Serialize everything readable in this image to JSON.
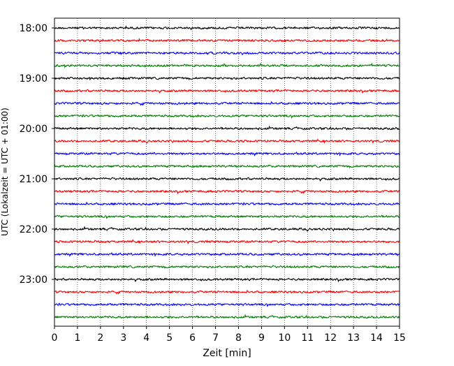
{
  "chart_data": {
    "type": "line",
    "title": "",
    "xlabel": "Zeit  [min]",
    "ylabel": "UTC (Lokalzeit = UTC + 01:00)",
    "xlim": [
      0,
      15
    ],
    "x_ticks": [
      "0",
      "1",
      "2",
      "3",
      "4",
      "5",
      "6",
      "7",
      "8",
      "9",
      "10",
      "11",
      "12",
      "13",
      "14",
      "15"
    ],
    "y_ticks": [
      "18:00",
      "19:00",
      "20:00",
      "21:00",
      "22:00",
      "23:00"
    ],
    "grid": "vertical dotted lines at each minute",
    "trace_colors": [
      "#000000",
      "#ff0000",
      "#0000ff",
      "#008000"
    ],
    "trace_count": 24,
    "minutes_per_trace": 15,
    "start_time": "18:00",
    "end_time": "24:00"
  }
}
